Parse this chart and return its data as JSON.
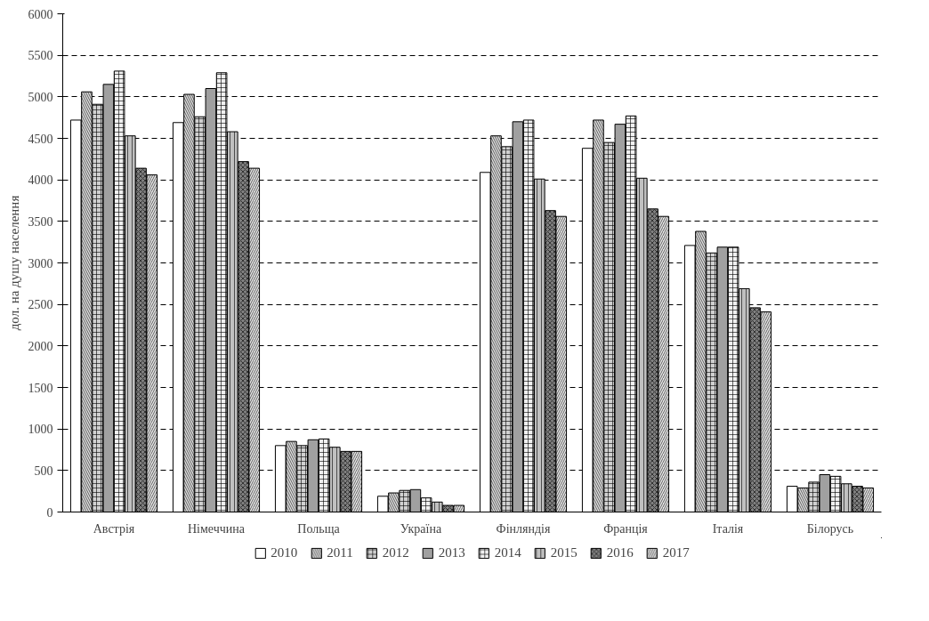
{
  "chart_data": {
    "type": "bar",
    "ylabel": "дол. на душу населення",
    "categories": [
      "Австрія",
      "Німеччина",
      "Польща",
      "Україна",
      "Фінляндія",
      "Франція",
      "Італія",
      "Білорусь"
    ],
    "series": [
      {
        "name": "2010",
        "color": "#ffffff",
        "values": [
          4720,
          4690,
          800,
          190,
          4090,
          4380,
          3210,
          310
        ]
      },
      {
        "name": "2011",
        "color": "#e0e0e0",
        "values": [
          5060,
          5030,
          850,
          230,
          4530,
          4720,
          3380,
          290
        ]
      },
      {
        "name": "2012",
        "color": "#d0d0d0",
        "values": [
          4910,
          4760,
          800,
          260,
          4400,
          4450,
          3120,
          360
        ]
      },
      {
        "name": "2013",
        "color": "#a0a0a0",
        "values": [
          5150,
          5100,
          870,
          270,
          4700,
          4670,
          3190,
          450
        ]
      },
      {
        "name": "2014",
        "color": "#f0f0f0",
        "values": [
          5310,
          5290,
          880,
          170,
          4720,
          4770,
          3190,
          430
        ]
      },
      {
        "name": "2015",
        "color": "#c0c0c0",
        "values": [
          4530,
          4580,
          780,
          120,
          4010,
          4020,
          2690,
          340
        ]
      },
      {
        "name": "2016",
        "color": "#808080",
        "values": [
          4140,
          4220,
          730,
          80,
          3630,
          3650,
          2460,
          310
        ]
      },
      {
        "name": "2017",
        "color": "#e8e8e8",
        "values": [
          4060,
          4140,
          730,
          80,
          3560,
          3560,
          2410,
          290
        ]
      }
    ],
    "ylim": [
      0,
      6000
    ],
    "yticks": [
      0,
      500,
      1000,
      1500,
      2000,
      2500,
      3000,
      3500,
      4000,
      4500,
      5000,
      5500,
      6000
    ],
    "grid": "y",
    "legend": "bottom"
  }
}
